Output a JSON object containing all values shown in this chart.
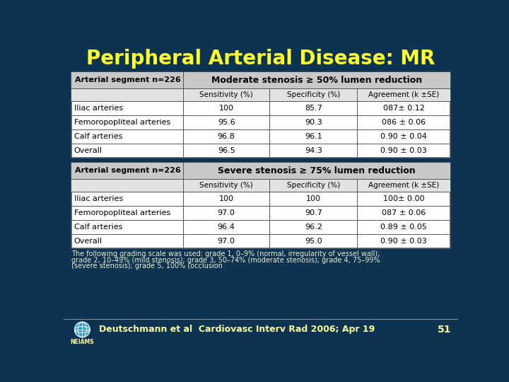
{
  "title": "Peripheral Arterial Disease: MR",
  "title_color": "#FFFF33",
  "bg_color": "#0d3352",
  "table_outer_bg": "#1a4060",
  "table1_header": "Moderate stenosis ≥ 50% lumen reduction",
  "table2_header": "Severe stenosis ≥ 75% lumen reduction",
  "col_header_left": "Arterial segment n=226",
  "col_headers": [
    "Sensitivity (%)",
    "Specificity (%)",
    "Agreement (k ±SE)"
  ],
  "table1_rows": [
    [
      "Iliac arteries",
      "100",
      "85.7",
      "087± 0.12"
    ],
    [
      "Femoropopliteal arteries",
      "95.6",
      "90.3",
      "086 ± 0.06"
    ],
    [
      "Calf arteries",
      "96.8",
      "96.1",
      "0.90 ± 0.04"
    ],
    [
      "Overall",
      "96.5",
      "94.3",
      "0.90 ± 0.03"
    ]
  ],
  "table2_rows": [
    [
      "Iliac arteries",
      "100",
      "100",
      "100± 0.00"
    ],
    [
      "Femoropopliteal arteries",
      "97.0",
      "90.7",
      "087 ± 0.06"
    ],
    [
      "Calf arteries",
      "96.4",
      "96.2",
      "0.89 ± 0.05"
    ],
    [
      "Overall",
      "97.0",
      "95.0",
      "0.90 ± 0.03"
    ]
  ],
  "footnote_line1": "The following grading scale was used: grade 1, 0–9% (normal, irregularity of vessel wall);",
  "footnote_line2": "grade 2, 10–49% (mild stenosis); grade 3, 50–74% (moderate stenosis); grade 4, 75–99%",
  "footnote_line3": "(severe stenosis); grade 5, 100% (occlusion",
  "citation": "Deutschmann et al  Cardiovasc Interv Rad 2006; Apr 19",
  "page_num": "51",
  "footnote_color": "#EEEECC",
  "citation_color": "#FFFF99",
  "text_color": "#000000"
}
